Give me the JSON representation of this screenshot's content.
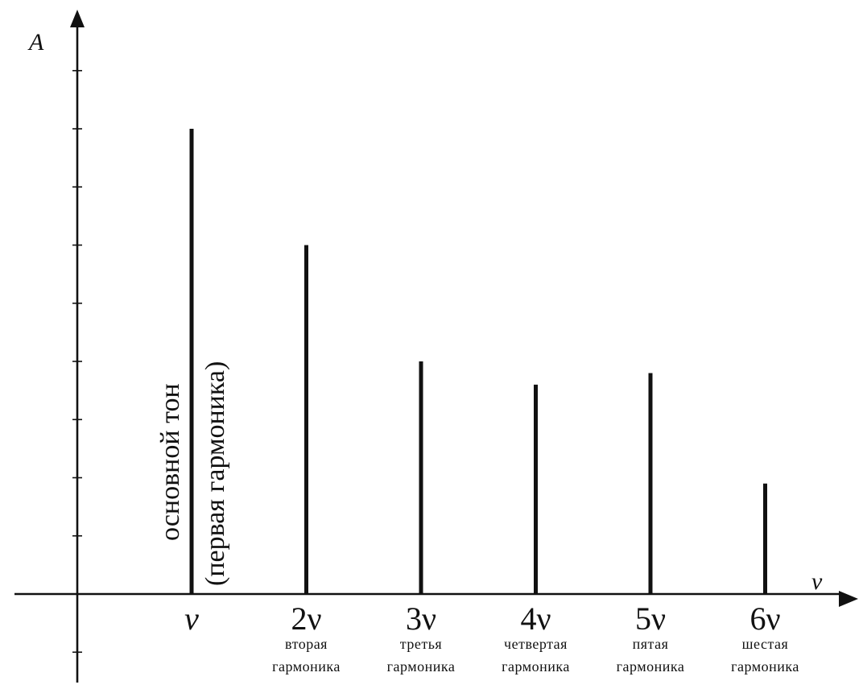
{
  "chart_data": {
    "type": "bar",
    "x_axis_label": "ν",
    "y_axis_label": "A",
    "categories": [
      "ν",
      "2ν",
      "3ν",
      "4ν",
      "5ν",
      "6ν"
    ],
    "values": [
      8.0,
      6.0,
      4.0,
      3.6,
      3.8,
      1.9
    ],
    "ylim": [
      0,
      10
    ],
    "grid": false,
    "harmonic_labels": [
      [
        "вторая",
        "гармоника"
      ],
      [
        "третья",
        "гармоника"
      ],
      [
        "четвертая",
        "гармоника"
      ],
      [
        "пятая",
        "гармоника"
      ],
      [
        "шестая",
        "гармоника"
      ]
    ],
    "fundamental_label": [
      "основной тон",
      "(первая гармоника)"
    ]
  }
}
